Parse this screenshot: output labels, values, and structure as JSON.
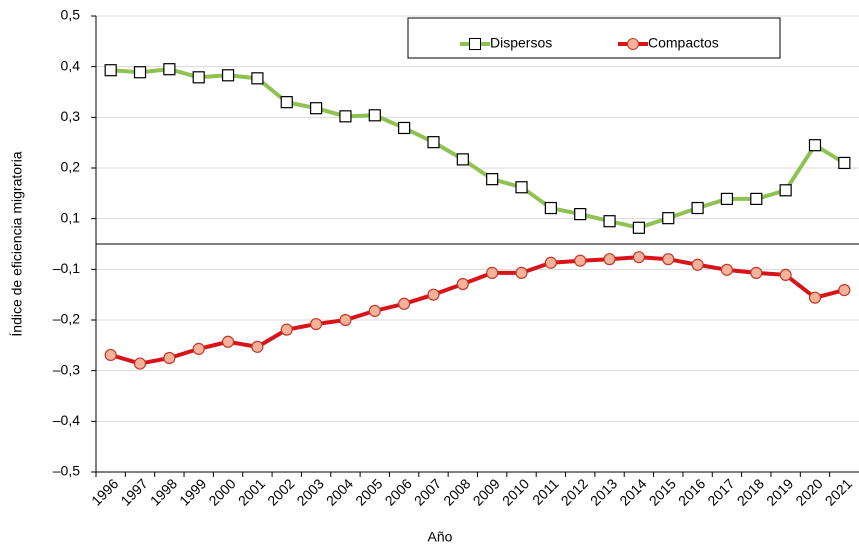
{
  "chart_data": [
    {
      "type": "line",
      "y_label": "Índice de eficiencia migratoria",
      "categories": [
        "1996",
        "1997",
        "1998",
        "1999",
        "2000",
        "2001",
        "2002",
        "2003",
        "2004",
        "2005",
        "2006",
        "2007",
        "2008",
        "2009",
        "2010",
        "2011",
        "2012",
        "2013",
        "2014",
        "2015",
        "2016",
        "2017",
        "2018",
        "2019",
        "2020",
        "2021"
      ],
      "series": [
        {
          "name": "Dispersos",
          "color": "#8fc153",
          "marker": "square",
          "marker_fill": "#ffffff",
          "marker_stroke": "#000000",
          "values": [
            0.393,
            0.389,
            0.395,
            0.379,
            0.383,
            0.377,
            0.33,
            0.318,
            0.302,
            0.304,
            0.279,
            0.251,
            0.217,
            0.178,
            0.162,
            0.121,
            0.109,
            0.095,
            0.082,
            0.101,
            0.121,
            0.139,
            0.139,
            0.156,
            0.245,
            0.21
          ]
        }
      ],
      "ylim": [
        0.05,
        0.5
      ],
      "yticks": [
        {
          "value": 0.1,
          "label": "0,1"
        },
        {
          "value": 0.2,
          "label": "0,2"
        },
        {
          "value": 0.3,
          "label": "0,3"
        },
        {
          "value": 0.4,
          "label": "0,4"
        },
        {
          "value": 0.5,
          "label": "0,5"
        }
      ],
      "grid": true
    },
    {
      "type": "line",
      "x_label": "Año",
      "categories": [
        "1996",
        "1997",
        "1998",
        "1999",
        "2000",
        "2001",
        "2002",
        "2003",
        "2004",
        "2005",
        "2006",
        "2007",
        "2008",
        "2009",
        "2010",
        "2011",
        "2012",
        "2013",
        "2014",
        "2015",
        "2016",
        "2017",
        "2018",
        "2019",
        "2020",
        "2021"
      ],
      "series": [
        {
          "name": "Compactos",
          "color": "#d7141a",
          "marker": "circle",
          "marker_fill": "#f7b29a",
          "marker_stroke": "#c0392b",
          "values": [
            -0.269,
            -0.286,
            -0.275,
            -0.257,
            -0.243,
            -0.253,
            -0.219,
            -0.208,
            -0.2,
            -0.182,
            -0.168,
            -0.15,
            -0.129,
            -0.107,
            -0.107,
            -0.087,
            -0.083,
            -0.08,
            -0.076,
            -0.08,
            -0.091,
            -0.101,
            -0.107,
            -0.111,
            -0.156,
            -0.141
          ]
        }
      ],
      "ylim": [
        -0.5,
        -0.05
      ],
      "yticks": [
        {
          "value": -0.5,
          "label": "–0,5"
        },
        {
          "value": -0.4,
          "label": "–0,4"
        },
        {
          "value": -0.3,
          "label": "–0,3"
        },
        {
          "value": -0.2,
          "label": "–0,2"
        },
        {
          "value": -0.1,
          "label": "–0,1"
        }
      ],
      "grid": true
    }
  ]
}
